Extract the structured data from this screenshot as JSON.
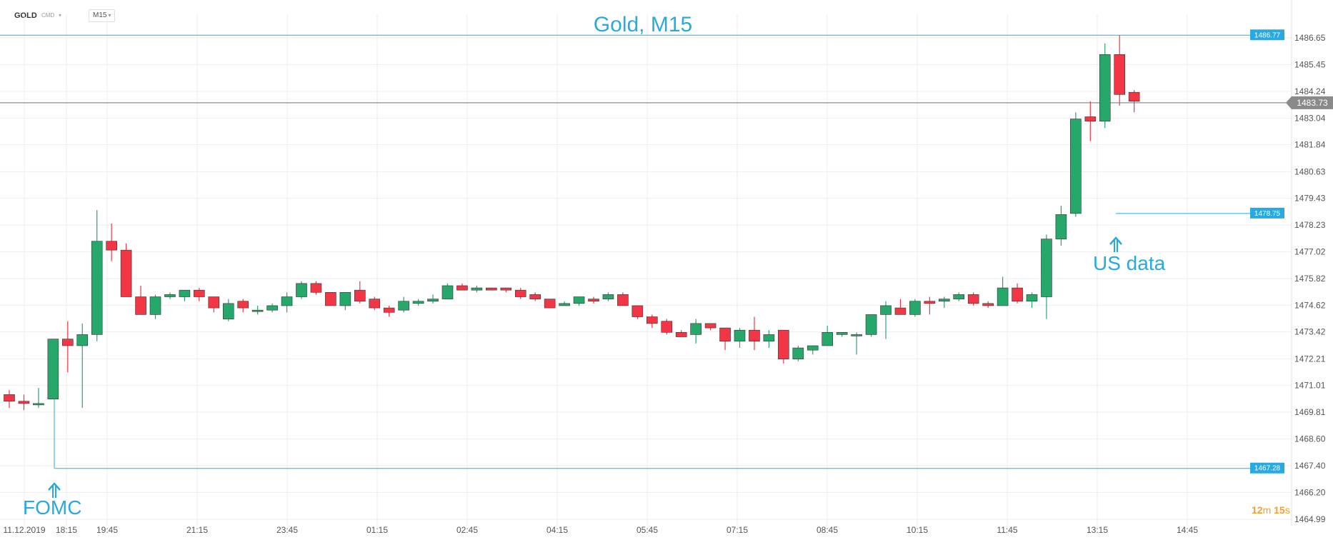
{
  "toolbar": {
    "symbol": "GOLD",
    "symbol_sub": "CMD",
    "timeframe": "M15"
  },
  "timer": {
    "minutes": "12",
    "min_unit": "m",
    "seconds": "15",
    "sec_unit": "s"
  },
  "chart_data": {
    "type": "candlestick",
    "title": "Gold, M15",
    "ylim": [
      1464.4,
      1487.5
    ],
    "y_ticks": [
      1486.65,
      1485.45,
      1484.24,
      1483.04,
      1481.84,
      1480.63,
      1479.43,
      1478.23,
      1477.02,
      1475.82,
      1474.62,
      1473.42,
      1472.21,
      1471.01,
      1469.81,
      1468.6,
      1467.4,
      1466.2,
      1464.99
    ],
    "x_ticks": [
      "11.12.2019",
      "18:15",
      "19:45",
      "21:15",
      "23:45",
      "01:15",
      "02:45",
      "04:15",
      "05:45",
      "07:15",
      "08:45",
      "10:15",
      "11:45",
      "13:15",
      "14:45"
    ],
    "current_price": 1483.73,
    "horizontal_levels": [
      {
        "label": "1486.77",
        "value": 1486.77
      },
      {
        "label": "1478.75",
        "value": 1478.75
      },
      {
        "label": "1467.28",
        "value": 1467.28
      }
    ],
    "annotations": [
      {
        "text": "FOMC"
      },
      {
        "text": "US data"
      }
    ],
    "colors": {
      "up": "#26a86b",
      "down": "#f23645",
      "level": "#29a9e1",
      "price_line": "#8e8e8e",
      "grid": "#eeeeee"
    },
    "candles": [
      {
        "o": 1470.6,
        "h": 1470.8,
        "l": 1470.0,
        "c": 1470.3
      },
      {
        "o": 1470.3,
        "h": 1470.6,
        "l": 1469.9,
        "c": 1470.2
      },
      {
        "o": 1470.2,
        "h": 1470.9,
        "l": 1470.0,
        "c": 1470.2
      },
      {
        "o": 1470.4,
        "h": 1473.1,
        "l": 1470.4,
        "c": 1473.1
      },
      {
        "o": 1473.1,
        "h": 1473.9,
        "l": 1471.6,
        "c": 1472.8
      },
      {
        "o": 1472.8,
        "h": 1473.8,
        "l": 1470.0,
        "c": 1473.3
      },
      {
        "o": 1473.3,
        "h": 1478.9,
        "l": 1473.0,
        "c": 1477.5
      },
      {
        "o": 1477.5,
        "h": 1478.3,
        "l": 1476.6,
        "c": 1477.1
      },
      {
        "o": 1477.1,
        "h": 1477.4,
        "l": 1475.1,
        "c": 1475.0
      },
      {
        "o": 1475.0,
        "h": 1475.5,
        "l": 1474.2,
        "c": 1474.2
      },
      {
        "o": 1474.2,
        "h": 1475.1,
        "l": 1474.0,
        "c": 1475.0
      },
      {
        "o": 1475.0,
        "h": 1475.2,
        "l": 1474.9,
        "c": 1475.1
      },
      {
        "o": 1475.0,
        "h": 1475.3,
        "l": 1474.8,
        "c": 1475.3
      },
      {
        "o": 1475.3,
        "h": 1475.4,
        "l": 1474.8,
        "c": 1475.0
      },
      {
        "o": 1475.0,
        "h": 1475.0,
        "l": 1474.3,
        "c": 1474.5
      },
      {
        "o": 1474.0,
        "h": 1474.9,
        "l": 1473.9,
        "c": 1474.7
      },
      {
        "o": 1474.8,
        "h": 1474.9,
        "l": 1474.3,
        "c": 1474.5
      },
      {
        "o": 1474.4,
        "h": 1474.6,
        "l": 1474.2,
        "c": 1474.4
      },
      {
        "o": 1474.4,
        "h": 1474.7,
        "l": 1474.3,
        "c": 1474.6
      },
      {
        "o": 1474.6,
        "h": 1475.2,
        "l": 1474.3,
        "c": 1475.0
      },
      {
        "o": 1475.0,
        "h": 1475.7,
        "l": 1474.9,
        "c": 1475.6
      },
      {
        "o": 1475.6,
        "h": 1475.7,
        "l": 1475.1,
        "c": 1475.2
      },
      {
        "o": 1475.2,
        "h": 1475.2,
        "l": 1474.6,
        "c": 1474.6
      },
      {
        "o": 1474.6,
        "h": 1475.2,
        "l": 1474.4,
        "c": 1475.2
      },
      {
        "o": 1475.3,
        "h": 1475.7,
        "l": 1474.7,
        "c": 1474.8
      },
      {
        "o": 1474.9,
        "h": 1475.0,
        "l": 1474.4,
        "c": 1474.5
      },
      {
        "o": 1474.5,
        "h": 1474.6,
        "l": 1474.1,
        "c": 1474.3
      },
      {
        "o": 1474.4,
        "h": 1475.0,
        "l": 1474.3,
        "c": 1474.8
      },
      {
        "o": 1474.7,
        "h": 1474.9,
        "l": 1474.6,
        "c": 1474.8
      },
      {
        "o": 1474.8,
        "h": 1475.1,
        "l": 1474.7,
        "c": 1474.9
      },
      {
        "o": 1474.9,
        "h": 1475.6,
        "l": 1474.9,
        "c": 1475.5
      },
      {
        "o": 1475.5,
        "h": 1475.6,
        "l": 1475.3,
        "c": 1475.3
      },
      {
        "o": 1475.3,
        "h": 1475.5,
        "l": 1475.2,
        "c": 1475.4
      },
      {
        "o": 1475.4,
        "h": 1475.4,
        "l": 1475.3,
        "c": 1475.3
      },
      {
        "o": 1475.4,
        "h": 1475.4,
        "l": 1475.2,
        "c": 1475.3
      },
      {
        "o": 1475.3,
        "h": 1475.4,
        "l": 1474.9,
        "c": 1475.0
      },
      {
        "o": 1475.1,
        "h": 1475.2,
        "l": 1474.8,
        "c": 1474.9
      },
      {
        "o": 1474.9,
        "h": 1474.9,
        "l": 1474.5,
        "c": 1474.5
      },
      {
        "o": 1474.6,
        "h": 1474.8,
        "l": 1474.6,
        "c": 1474.7
      },
      {
        "o": 1474.7,
        "h": 1475.0,
        "l": 1474.6,
        "c": 1475.0
      },
      {
        "o": 1474.9,
        "h": 1475.0,
        "l": 1474.7,
        "c": 1474.8
      },
      {
        "o": 1474.9,
        "h": 1475.2,
        "l": 1474.8,
        "c": 1475.1
      },
      {
        "o": 1475.1,
        "h": 1475.2,
        "l": 1474.6,
        "c": 1474.6
      },
      {
        "o": 1474.6,
        "h": 1474.6,
        "l": 1474.0,
        "c": 1474.1
      },
      {
        "o": 1474.1,
        "h": 1474.2,
        "l": 1473.6,
        "c": 1473.8
      },
      {
        "o": 1473.9,
        "h": 1474.0,
        "l": 1473.3,
        "c": 1473.4
      },
      {
        "o": 1473.4,
        "h": 1473.5,
        "l": 1473.2,
        "c": 1473.2
      },
      {
        "o": 1473.3,
        "h": 1474.0,
        "l": 1472.9,
        "c": 1473.8
      },
      {
        "o": 1473.8,
        "h": 1473.8,
        "l": 1473.5,
        "c": 1473.6
      },
      {
        "o": 1473.6,
        "h": 1473.6,
        "l": 1472.6,
        "c": 1473.0
      },
      {
        "o": 1473.0,
        "h": 1473.6,
        "l": 1472.7,
        "c": 1473.5
      },
      {
        "o": 1473.5,
        "h": 1474.1,
        "l": 1472.6,
        "c": 1473.0
      },
      {
        "o": 1473.0,
        "h": 1473.5,
        "l": 1472.7,
        "c": 1473.3
      },
      {
        "o": 1473.5,
        "h": 1473.5,
        "l": 1472.0,
        "c": 1472.2
      },
      {
        "o": 1472.2,
        "h": 1472.8,
        "l": 1472.1,
        "c": 1472.7
      },
      {
        "o": 1472.6,
        "h": 1472.8,
        "l": 1472.4,
        "c": 1472.8
      },
      {
        "o": 1472.8,
        "h": 1473.7,
        "l": 1472.8,
        "c": 1473.4
      },
      {
        "o": 1473.3,
        "h": 1473.4,
        "l": 1473.2,
        "c": 1473.4
      },
      {
        "o": 1473.3,
        "h": 1473.4,
        "l": 1472.4,
        "c": 1473.3
      },
      {
        "o": 1473.3,
        "h": 1474.2,
        "l": 1473.2,
        "c": 1474.2
      },
      {
        "o": 1474.2,
        "h": 1474.8,
        "l": 1473.1,
        "c": 1474.6
      },
      {
        "o": 1474.5,
        "h": 1474.9,
        "l": 1474.2,
        "c": 1474.2
      },
      {
        "o": 1474.2,
        "h": 1474.9,
        "l": 1474.1,
        "c": 1474.8
      },
      {
        "o": 1474.8,
        "h": 1475.0,
        "l": 1474.2,
        "c": 1474.7
      },
      {
        "o": 1474.8,
        "h": 1475.0,
        "l": 1474.5,
        "c": 1474.9
      },
      {
        "o": 1474.9,
        "h": 1475.2,
        "l": 1474.8,
        "c": 1475.1
      },
      {
        "o": 1475.1,
        "h": 1475.2,
        "l": 1474.6,
        "c": 1474.7
      },
      {
        "o": 1474.7,
        "h": 1474.8,
        "l": 1474.5,
        "c": 1474.6
      },
      {
        "o": 1474.6,
        "h": 1475.9,
        "l": 1474.6,
        "c": 1475.4
      },
      {
        "o": 1475.4,
        "h": 1475.6,
        "l": 1474.7,
        "c": 1474.8
      },
      {
        "o": 1474.8,
        "h": 1475.2,
        "l": 1474.5,
        "c": 1475.1
      },
      {
        "o": 1475.0,
        "h": 1477.8,
        "l": 1474.0,
        "c": 1477.6
      },
      {
        "o": 1477.6,
        "h": 1479.1,
        "l": 1477.3,
        "c": 1478.7
      },
      {
        "o": 1478.75,
        "h": 1483.3,
        "l": 1478.6,
        "c": 1483.0
      },
      {
        "o": 1483.1,
        "h": 1483.8,
        "l": 1482.0,
        "c": 1482.9
      },
      {
        "o": 1482.9,
        "h": 1486.4,
        "l": 1482.6,
        "c": 1485.9
      },
      {
        "o": 1485.9,
        "h": 1486.77,
        "l": 1483.6,
        "c": 1484.1
      },
      {
        "o": 1484.2,
        "h": 1484.3,
        "l": 1483.3,
        "c": 1483.8
      }
    ]
  }
}
